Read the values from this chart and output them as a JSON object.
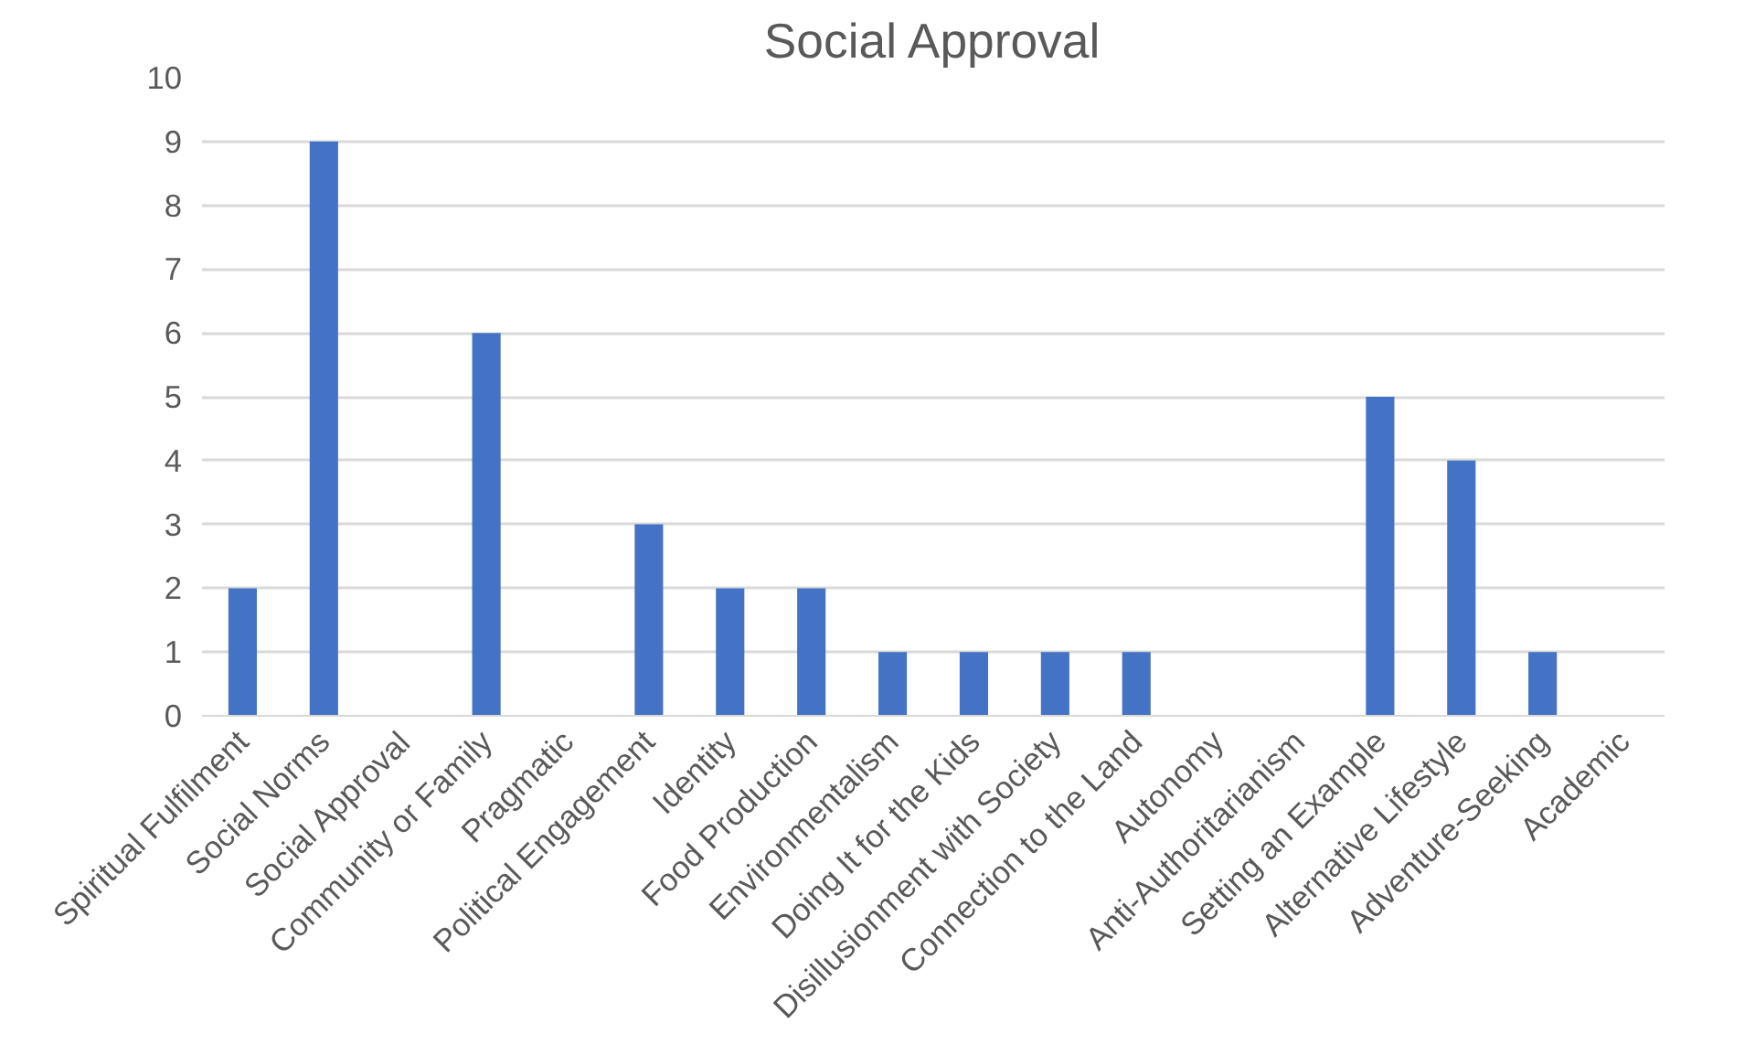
{
  "chart_data": {
    "type": "bar",
    "title": "Social Approval",
    "categories": [
      "Spiritual Fulfilment",
      "Social Norms",
      "Social Approval",
      "Community or Family",
      "Pragmatic",
      "Political Engagement",
      "Identity",
      "Food Production",
      "Environmentalism",
      "Doing It for the Kids",
      "Disillusionment with Society",
      "Connection to the Land",
      "Autonomy",
      "Anti-Authoritarianism",
      "Setting an Example",
      "Alternative Lifestyle",
      "Adventure-Seeking",
      "Academic"
    ],
    "values": [
      2,
      9,
      0,
      6,
      0,
      3,
      2,
      2,
      1,
      1,
      1,
      1,
      0,
      0,
      5,
      4,
      1,
      0
    ],
    "color": "#4472c4",
    "ylim": [
      0,
      10
    ],
    "yticks": [
      0,
      1,
      2,
      3,
      4,
      5,
      6,
      7,
      8,
      9,
      10
    ],
    "grid": "y"
  }
}
